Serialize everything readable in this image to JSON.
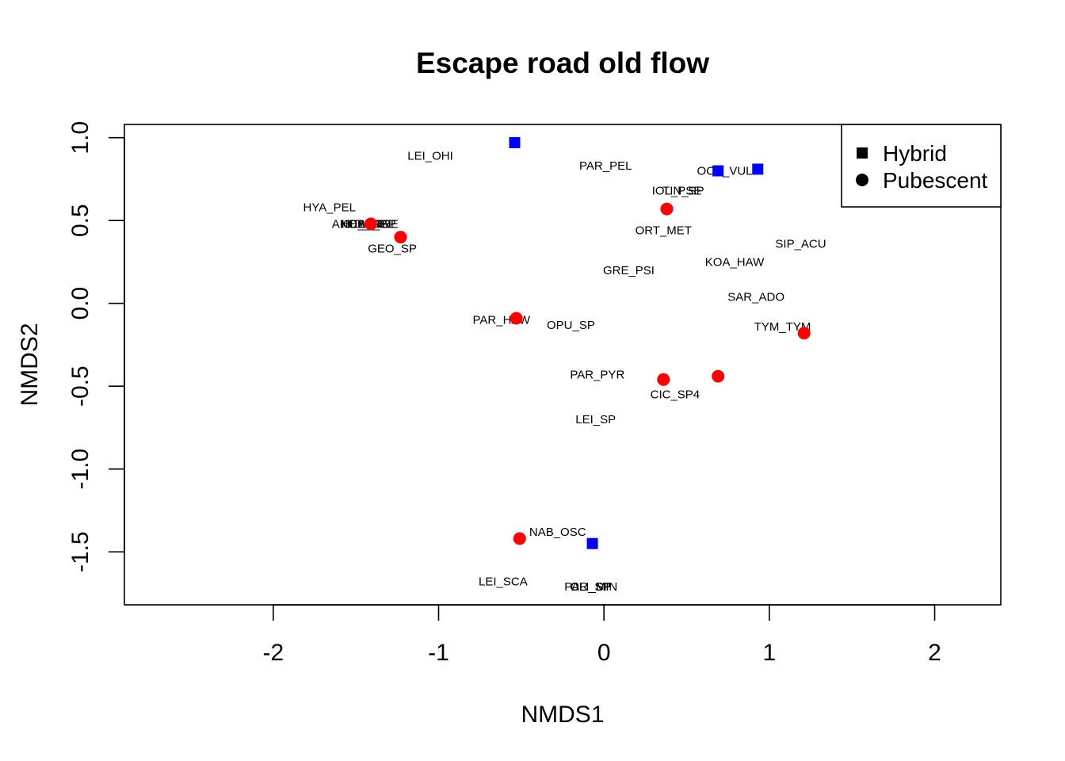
{
  "chart_data": {
    "type": "scatter",
    "title": "Escape road old flow",
    "xlabel": "NMDS1",
    "ylabel": "NMDS2",
    "xlim": [
      -2.9,
      2.4
    ],
    "ylim": [
      -1.82,
      1.08
    ],
    "xticks": [
      -2,
      -1,
      0,
      1,
      2
    ],
    "xtick_labels": [
      "-2",
      "-1",
      "0",
      "1",
      "2"
    ],
    "yticks": [
      1.0,
      0.5,
      0.0,
      -0.5,
      -1.0,
      -1.5
    ],
    "ytick_labels": [
      "1.0",
      "0.5",
      "0.0",
      "-0.5",
      "-1.0",
      "-1.5"
    ],
    "grid": false,
    "legend": {
      "placement": "top-right",
      "entries": [
        {
          "label": "Hybrid",
          "shape": "square"
        },
        {
          "label": "Pubescent",
          "shape": "circle"
        }
      ]
    },
    "series": [
      {
        "name": "Hybrid",
        "shape": "square",
        "color": "#0000ff",
        "points": [
          {
            "x": -0.54,
            "y": 0.97
          },
          {
            "x": 0.69,
            "y": 0.8
          },
          {
            "x": 0.93,
            "y": 0.81
          },
          {
            "x": -0.07,
            "y": -1.45
          }
        ]
      },
      {
        "name": "Pubescent",
        "shape": "circle",
        "color": "#ff0000",
        "points": [
          {
            "x": -1.41,
            "y": 0.48
          },
          {
            "x": -1.23,
            "y": 0.4
          },
          {
            "x": 0.38,
            "y": 0.57
          },
          {
            "x": -0.53,
            "y": -0.09
          },
          {
            "x": 0.36,
            "y": -0.46
          },
          {
            "x": 0.69,
            "y": -0.44
          },
          {
            "x": 1.21,
            "y": -0.18
          },
          {
            "x": -0.51,
            "y": -1.42
          }
        ]
      }
    ],
    "species_labels": [
      {
        "text": "LEI_OHI",
        "x": -1.05,
        "y": 0.89
      },
      {
        "text": "PAR_PEL",
        "x": 0.01,
        "y": 0.83
      },
      {
        "text": "OCE_VUL",
        "x": 0.73,
        "y": 0.8
      },
      {
        "text": "IOL_PSE",
        "x": 0.44,
        "y": 0.68
      },
      {
        "text": "TIN_SP",
        "x": 0.48,
        "y": 0.68
      },
      {
        "text": "HYA_PEL",
        "x": -1.66,
        "y": 0.58
      },
      {
        "text": "ANO_ORE",
        "x": -1.47,
        "y": 0.48
      },
      {
        "text": "HEL_SP",
        "x": -1.45,
        "y": 0.48
      },
      {
        "text": "KOB_HEL",
        "x": -1.43,
        "y": 0.48
      },
      {
        "text": "HAP_SP",
        "x": -1.4,
        "y": 0.48
      },
      {
        "text": "OTH_TRE",
        "x": -1.41,
        "y": 0.48
      },
      {
        "text": "GEO_SP",
        "x": -1.28,
        "y": 0.33
      },
      {
        "text": "ORT_MET",
        "x": 0.36,
        "y": 0.44
      },
      {
        "text": "SIP_ACU",
        "x": 1.19,
        "y": 0.36
      },
      {
        "text": "KOA_HAW",
        "x": 0.79,
        "y": 0.25
      },
      {
        "text": "GRE_PSI",
        "x": 0.15,
        "y": 0.2
      },
      {
        "text": "SAR_ADO",
        "x": 0.92,
        "y": 0.04
      },
      {
        "text": "PAR_HAW",
        "x": -0.62,
        "y": -0.1
      },
      {
        "text": "OPU_SP",
        "x": -0.2,
        "y": -0.13
      },
      {
        "text": "TYM_TYM",
        "x": 1.08,
        "y": -0.14
      },
      {
        "text": "PAR_PYR",
        "x": -0.04,
        "y": -0.43
      },
      {
        "text": "CIC_SP4",
        "x": 0.43,
        "y": -0.55
      },
      {
        "text": "LEI_SP",
        "x": -0.05,
        "y": -0.7
      },
      {
        "text": "NAB_OSC",
        "x": -0.28,
        "y": -1.38
      },
      {
        "text": "LEI_SCA",
        "x": -0.61,
        "y": -1.68
      },
      {
        "text": "PAR_SP",
        "x": -0.1,
        "y": -1.71
      },
      {
        "text": "CLI_MIN",
        "x": -0.06,
        "y": -1.71
      },
      {
        "text": "OLI_SP",
        "x": -0.08,
        "y": -1.71
      }
    ]
  }
}
